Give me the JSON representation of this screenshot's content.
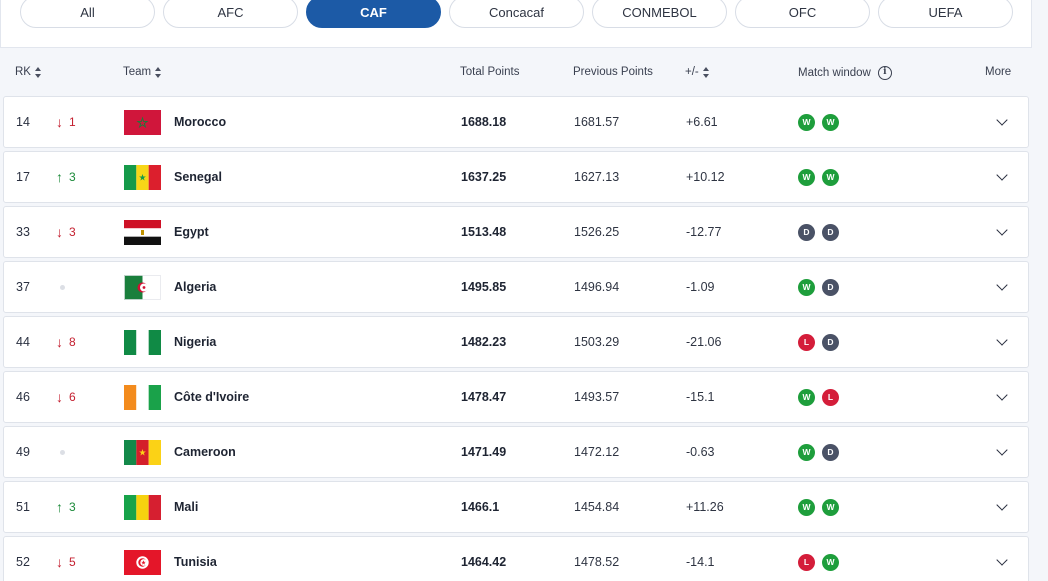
{
  "tabs": [
    {
      "label": "All",
      "active": false
    },
    {
      "label": "AFC",
      "active": false
    },
    {
      "label": "CAF",
      "active": true
    },
    {
      "label": "Concacaf",
      "active": false
    },
    {
      "label": "CONMEBOL",
      "active": false
    },
    {
      "label": "OFC",
      "active": false
    },
    {
      "label": "UEFA",
      "active": false
    }
  ],
  "header": {
    "rk": "RK",
    "team": "Team",
    "total": "Total Points",
    "prev": "Previous Points",
    "diff": "+/-",
    "match_window": "Match window",
    "more": "More"
  },
  "colors": {
    "accent": "#1c5aa6",
    "up": "#1c8a3a",
    "down": "#c41f2f",
    "win": "#1e9e3c",
    "draw": "#4a5266",
    "loss": "#d41d3a"
  },
  "rows": [
    {
      "rank": "14",
      "move_dir": "down",
      "move": "1",
      "flag": "morocco",
      "team": "Morocco",
      "total": "1688.18",
      "prev": "1681.57",
      "diff": "+6.61",
      "results": [
        "W",
        "W"
      ]
    },
    {
      "rank": "17",
      "move_dir": "up",
      "move": "3",
      "flag": "senegal",
      "team": "Senegal",
      "total": "1637.25",
      "prev": "1627.13",
      "diff": "+10.12",
      "results": [
        "W",
        "W"
      ]
    },
    {
      "rank": "33",
      "move_dir": "down",
      "move": "3",
      "flag": "egypt",
      "team": "Egypt",
      "total": "1513.48",
      "prev": "1526.25",
      "diff": "-12.77",
      "results": [
        "D",
        "D"
      ]
    },
    {
      "rank": "37",
      "move_dir": "none",
      "move": "",
      "flag": "algeria",
      "team": "Algeria",
      "total": "1495.85",
      "prev": "1496.94",
      "diff": "-1.09",
      "results": [
        "W",
        "D"
      ]
    },
    {
      "rank": "44",
      "move_dir": "down",
      "move": "8",
      "flag": "nigeria",
      "team": "Nigeria",
      "total": "1482.23",
      "prev": "1503.29",
      "diff": "-21.06",
      "results": [
        "L",
        "D"
      ]
    },
    {
      "rank": "46",
      "move_dir": "down",
      "move": "6",
      "flag": "cote-divoire",
      "team": "Côte d'Ivoire",
      "total": "1478.47",
      "prev": "1493.57",
      "diff": "-15.1",
      "results": [
        "W",
        "L"
      ]
    },
    {
      "rank": "49",
      "move_dir": "none",
      "move": "",
      "flag": "cameroon",
      "team": "Cameroon",
      "total": "1471.49",
      "prev": "1472.12",
      "diff": "-0.63",
      "results": [
        "W",
        "D"
      ]
    },
    {
      "rank": "51",
      "move_dir": "up",
      "move": "3",
      "flag": "mali",
      "team": "Mali",
      "total": "1466.1",
      "prev": "1454.84",
      "diff": "+11.26",
      "results": [
        "W",
        "W"
      ]
    },
    {
      "rank": "52",
      "move_dir": "down",
      "move": "5",
      "flag": "tunisia",
      "team": "Tunisia",
      "total": "1464.42",
      "prev": "1478.52",
      "diff": "-14.1",
      "results": [
        "L",
        "W"
      ]
    }
  ]
}
